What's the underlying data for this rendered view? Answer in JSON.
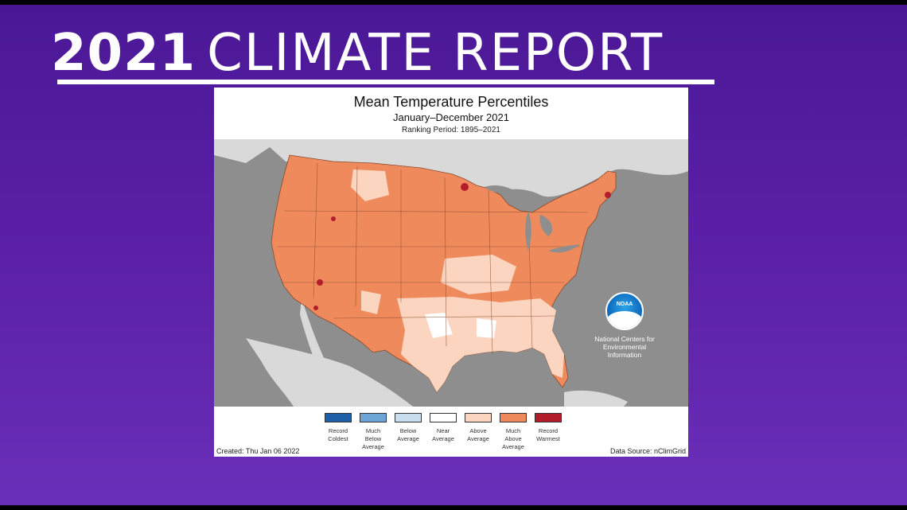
{
  "headline": {
    "year": "2021",
    "rest": "CLIMATE REPORT"
  },
  "map": {
    "title": "Mean Temperature Percentiles",
    "subtitle": "January–December 2021",
    "period": "Ranking Period: 1895–2021",
    "created": "Created: Thu Jan 06 2022",
    "source": "Data Source: nClimGrid",
    "noaa_logo_text": "NOAA",
    "noaa_text": "National Centers for Environmental Information",
    "legend": [
      {
        "label": "Record Coldest",
        "color": "#1f5fa8"
      },
      {
        "label": "Much Below Average",
        "color": "#6ba6d6"
      },
      {
        "label": "Below Average",
        "color": "#c7dff0"
      },
      {
        "label": "Near Average",
        "color": "#ffffff"
      },
      {
        "label": "Above Average",
        "color": "#fbd5c0"
      },
      {
        "label": "Much Above Average",
        "color": "#ee8a5c"
      },
      {
        "label": "Record Warmest",
        "color": "#b31c2a"
      }
    ]
  },
  "colors": {
    "background_top": "#4a1896",
    "background_bottom": "#6a2fb8",
    "ocean": "#8e8e8e",
    "neighbor_land": "#d9d9d9"
  }
}
